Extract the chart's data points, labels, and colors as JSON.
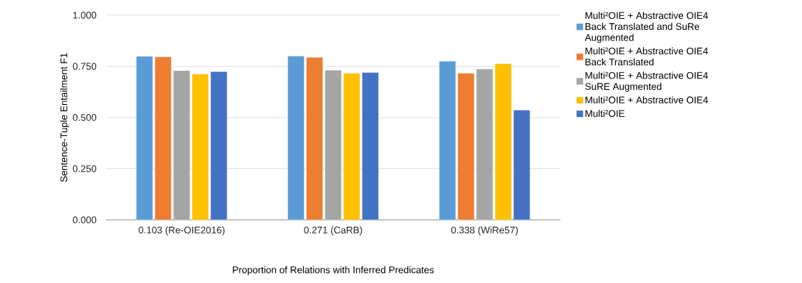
{
  "chart_data": {
    "type": "bar",
    "categories": [
      "0.103 (Re-OIE2016)",
      "0.271 (CaRB)",
      "0.338 (WiRe57)"
    ],
    "xlabel": "Proportion of Relations with Inferred Predicates",
    "ylabel": "Sentence-Tuple Entailment F1",
    "series": [
      {
        "name": "Multi²OIE + Abstractive OIE4 Back Translated and SuRe Augmented",
        "color": "#5b9bd5",
        "values": [
          0.799,
          0.8,
          0.775
        ]
      },
      {
        "name": "Multi²OIE + Abstractive OIE4 Back Translated",
        "color": "#ed7d31",
        "values": [
          0.796,
          0.794,
          0.716
        ]
      },
      {
        "name": "Multi²OIE + Abstractive OIE4 SuRE Augmented",
        "color": "#a5a5a5",
        "values": [
          0.729,
          0.731,
          0.737
        ]
      },
      {
        "name": "Multi²OIE + Abstractive OIE4",
        "color": "#ffc000",
        "values": [
          0.712,
          0.716,
          0.763
        ]
      },
      {
        "name": "Multi²OIE",
        "color": "#4472c4",
        "values": [
          0.724,
          0.72,
          0.536
        ]
      }
    ],
    "ylim": [
      0,
      1
    ],
    "yticks": [
      {
        "value": 0,
        "label": "0.000"
      },
      {
        "value": 0.25,
        "label": "0.250"
      },
      {
        "value": 0.5,
        "label": "0.500"
      },
      {
        "value": 0.75,
        "label": "0.750"
      },
      {
        "value": 1,
        "label": "1.000"
      }
    ],
    "grid": "y",
    "legend": "right"
  }
}
